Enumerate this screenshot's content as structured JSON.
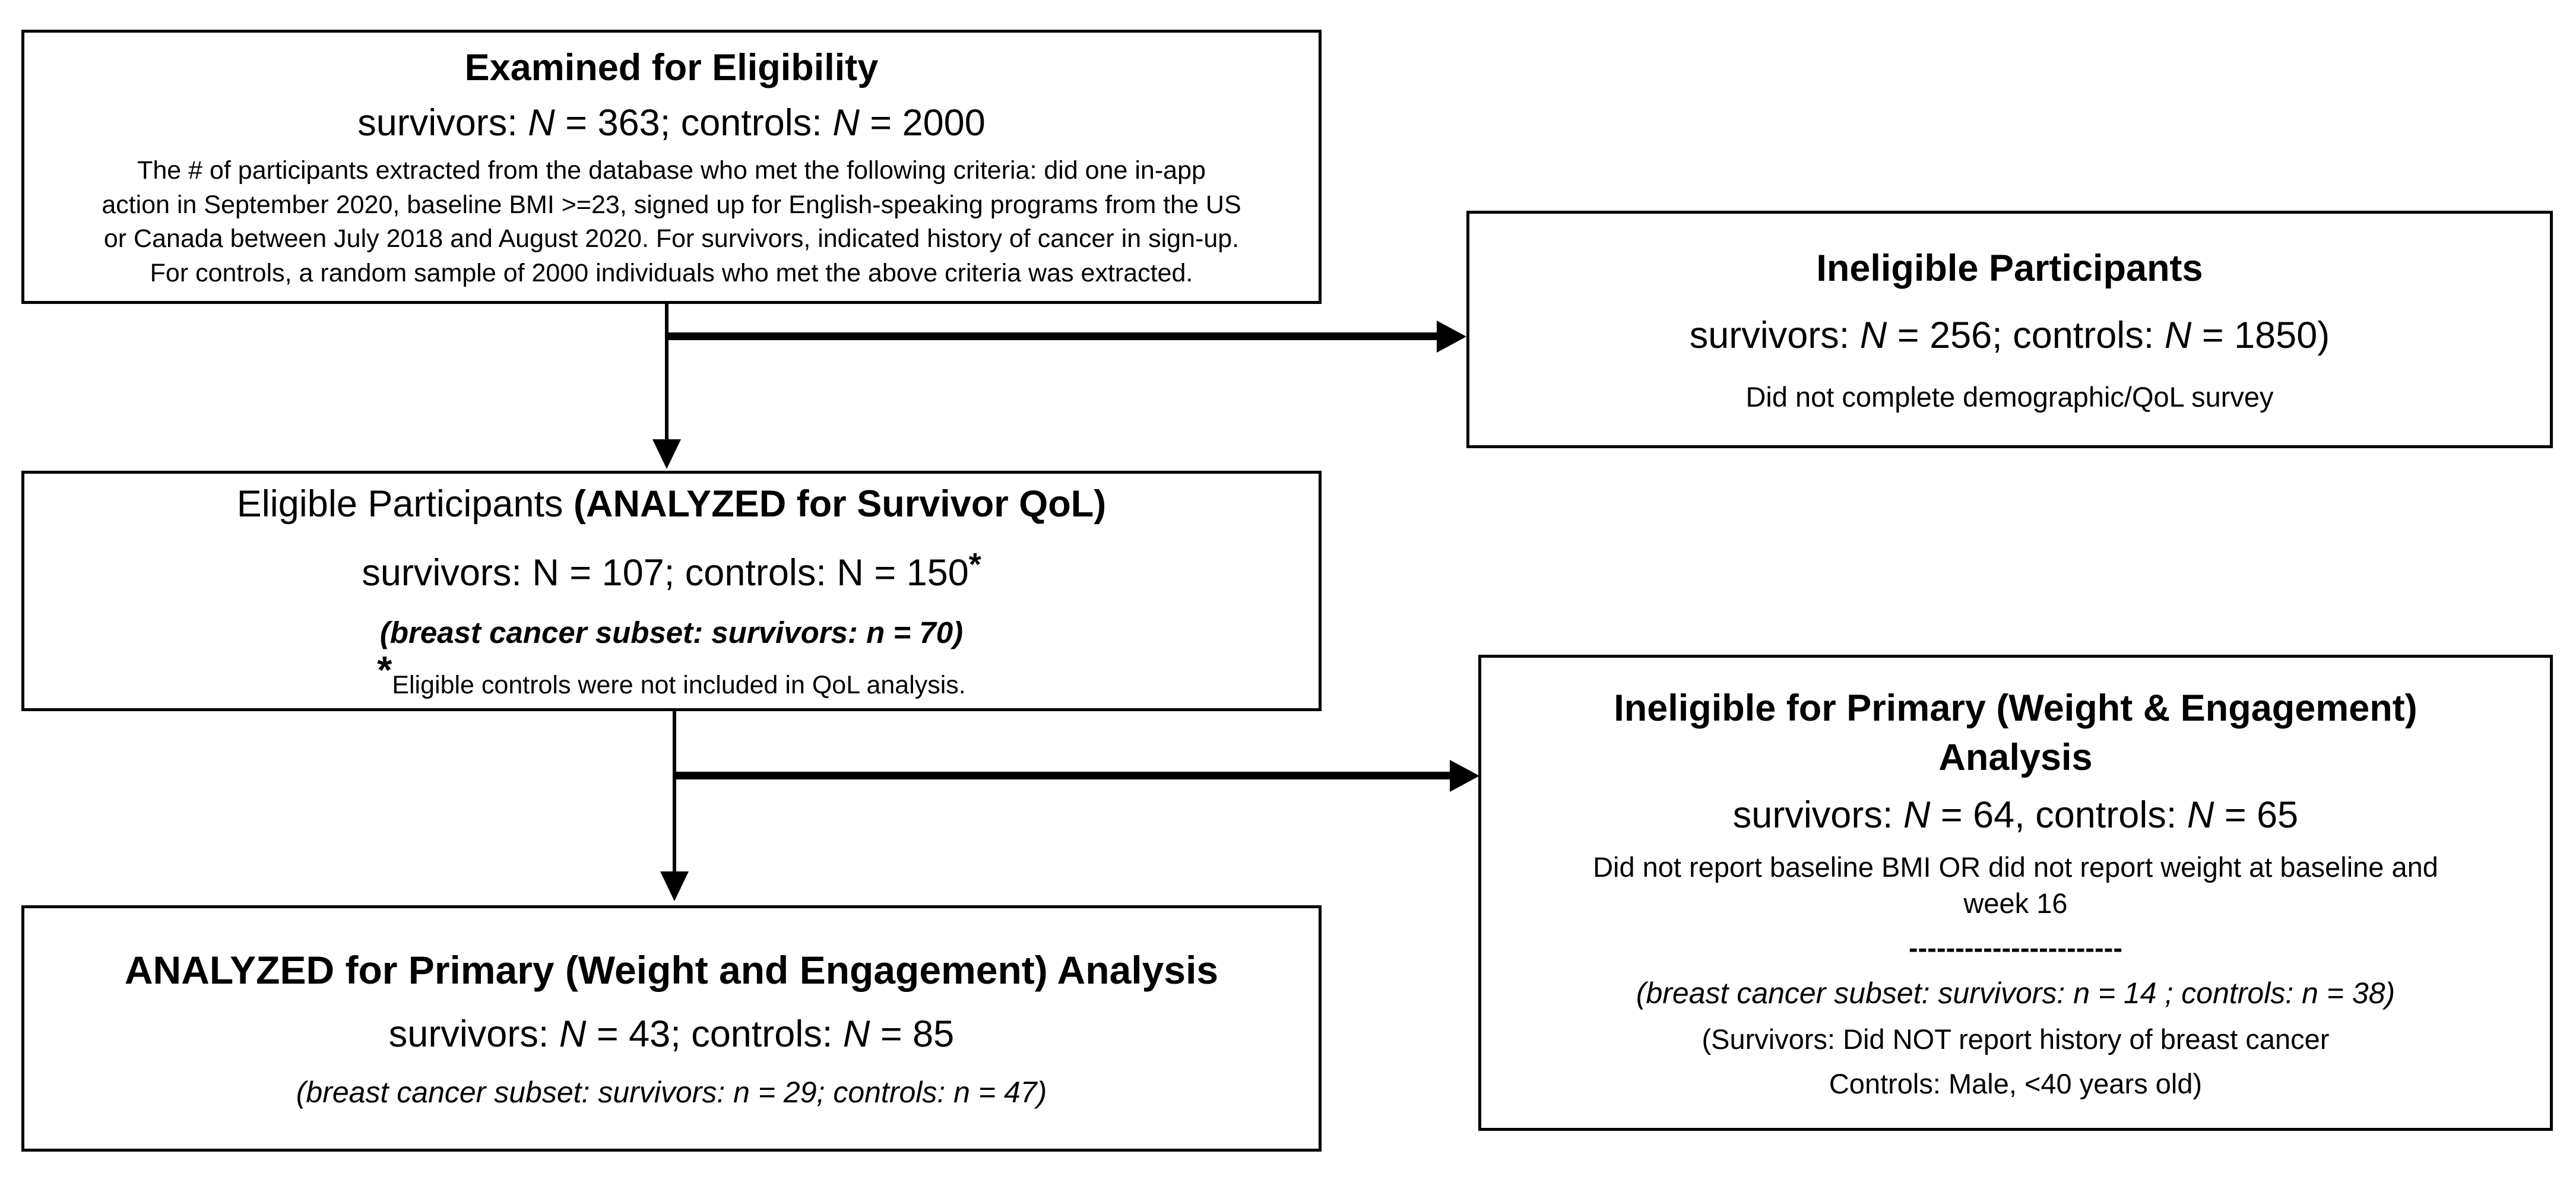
{
  "colors": {
    "ink": "#000000",
    "background": "#ffffff"
  },
  "boxes": {
    "examined": {
      "title": "Examined for Eligibility",
      "counts": {
        "a": "survivors: ",
        "n1": "N",
        "b": " = 363; controls: ",
        "n2": "N",
        "c": " = 2000"
      },
      "description": [
        "The # of participants extracted from the database who met the following criteria: did one in-app",
        "action in September 2020, baseline BMI >=23, signed up for English-speaking programs from the US",
        "or Canada between July 2018 and August 2020. For survivors, indicated history of cancer in sign-up.",
        "For controls, a random sample of 2000 individuals who met the above criteria was extracted."
      ]
    },
    "ineligible_participants": {
      "title": "Ineligible Participants",
      "counts": {
        "a": "survivors: ",
        "n1": "N",
        "b": " = 256; controls: ",
        "n2": "N",
        "c": " = 1850)"
      },
      "reason": "Did not complete demographic/QoL survey"
    },
    "eligible": {
      "title_regular": "Eligible Participants ",
      "title_bold": "(ANALYZED for Survivor QoL)",
      "counts": "survivors: N = 107; controls: N = 150",
      "counts_star": "*",
      "subset": "(breast cancer subset: survivors: n = 70)",
      "footnote_star": "*",
      "footnote": "Eligible controls were not included in QoL analysis."
    },
    "ineligible_primary": {
      "title": [
        "Ineligible for Primary (Weight & Engagement)",
        "Analysis"
      ],
      "counts": {
        "a": "survivors: ",
        "n1": "N",
        "b": " = 64, controls: ",
        "n2": "N",
        "c": " = 65"
      },
      "reason": [
        "Did not report baseline BMI OR did not report weight at baseline and",
        "week 16"
      ],
      "divider": "-----------------------",
      "subset": "(breast cancer subset: survivors: n = 14 ; controls: n = 38)",
      "notes": [
        "(Survivors: Did NOT report history of breast cancer",
        "Controls: Male, <40 years old)"
      ]
    },
    "analyzed_primary": {
      "title": "ANALYZED for Primary (Weight and Engagement) Analysis",
      "counts": {
        "a": "survivors: ",
        "n1": "N",
        "b": " = 43; controls: ",
        "n2": "N",
        "c": " = 85"
      },
      "subset": "(breast cancer subset: survivors: n = 29; controls: n = 47)"
    }
  }
}
